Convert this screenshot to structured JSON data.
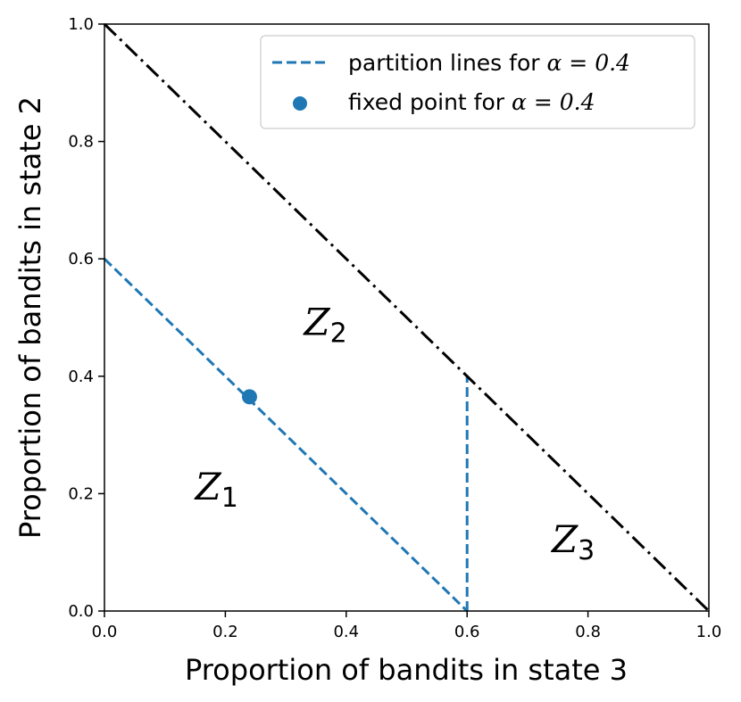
{
  "chart_data": {
    "type": "line",
    "xlabel": "Proportion of bandits in state 3",
    "ylabel": "Proportion of bandits in state 2",
    "xlim": [
      0.0,
      1.0
    ],
    "ylim": [
      0.0,
      1.0
    ],
    "x_ticks": [
      "0.0",
      "0.2",
      "0.4",
      "0.6",
      "0.8",
      "1.0"
    ],
    "y_ticks": [
      "0.0",
      "0.2",
      "0.4",
      "0.6",
      "0.8",
      "1.0"
    ],
    "grid": false,
    "legend_position": "top-right",
    "series": [
      {
        "name": "partition lines for α = 0.4",
        "style": "dashed",
        "color": "#1f77b4",
        "segments": [
          [
            [
              0.0,
              0.6
            ],
            [
              0.6,
              0.0
            ]
          ],
          [
            [
              0.6,
              0.0
            ],
            [
              0.6,
              0.4
            ]
          ]
        ]
      },
      {
        "name": "fixed point for α = 0.4",
        "style": "marker",
        "color": "#1f77b4",
        "points": [
          [
            0.24,
            0.365
          ]
        ]
      },
      {
        "style": "dash-dot",
        "color": "#000000",
        "segments": [
          [
            [
              0.0,
              1.0
            ],
            [
              1.0,
              0.0
            ]
          ]
        ]
      }
    ],
    "annotations": [
      {
        "text": "Z",
        "subscript": "1",
        "x": 0.15,
        "y": 0.19
      },
      {
        "text": "Z",
        "subscript": "2",
        "x": 0.33,
        "y": 0.47
      },
      {
        "text": "Z",
        "subscript": "3",
        "x": 0.74,
        "y": 0.1
      }
    ],
    "legend": {
      "line_entry_prefix": "partition lines for ",
      "line_entry_alpha": "α = 0.4",
      "point_entry_prefix": "fixed point for ",
      "point_entry_alpha": "α = 0.4"
    }
  }
}
